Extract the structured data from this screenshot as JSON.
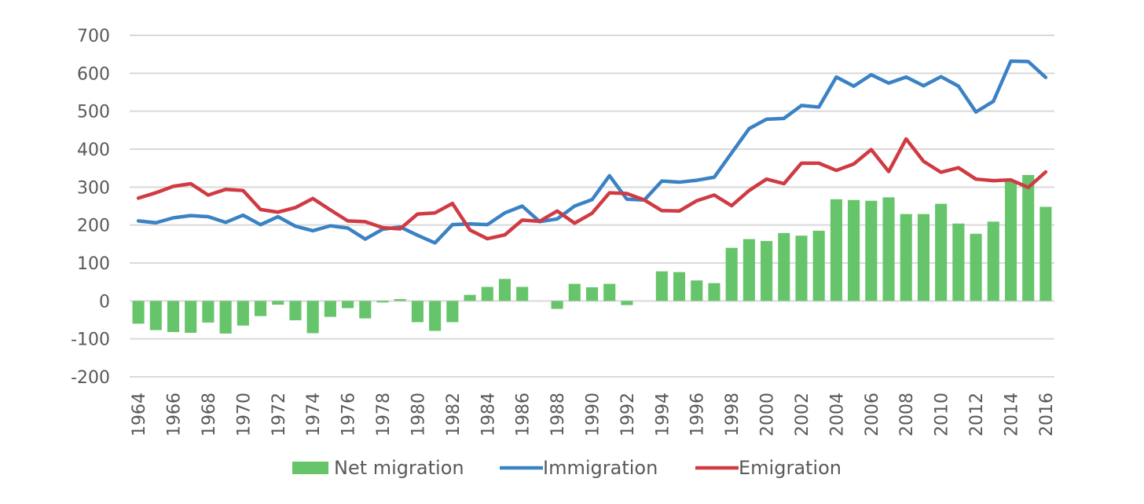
{
  "chart_data": {
    "type": "bar+line",
    "title": "",
    "xlabel": "",
    "ylabel": "",
    "ylim": [
      -200,
      700
    ],
    "yticks": [
      -200,
      -100,
      0,
      100,
      200,
      300,
      400,
      500,
      600,
      700
    ],
    "grid": true,
    "legend_position": "bottom",
    "x": [
      1964,
      1965,
      1966,
      1967,
      1968,
      1969,
      1970,
      1971,
      1972,
      1973,
      1974,
      1975,
      1976,
      1977,
      1978,
      1979,
      1980,
      1981,
      1982,
      1983,
      1984,
      1985,
      1986,
      1987,
      1988,
      1989,
      1990,
      1991,
      1992,
      1993,
      1994,
      1995,
      1996,
      1997,
      1998,
      1999,
      2000,
      2001,
      2002,
      2003,
      2004,
      2005,
      2006,
      2007,
      2008,
      2009,
      2010,
      2011,
      2012,
      2013,
      2014,
      2015,
      2016
    ],
    "series": [
      {
        "name": "Net migration",
        "type": "bar",
        "color": "#66C56A",
        "values": [
          -60,
          -77,
          -82,
          -84,
          -57,
          -86,
          -65,
          -40,
          -10,
          -51,
          -85,
          -42,
          -19,
          -46,
          -4,
          5,
          -56,
          -79,
          -56,
          16,
          37,
          58,
          37,
          0,
          -21,
          45,
          36,
          45,
          -11,
          0,
          78,
          76,
          54,
          47,
          140,
          163,
          158,
          179,
          172,
          185,
          268,
          266,
          264,
          273,
          229,
          229,
          256,
          204,
          177,
          209,
          317,
          332,
          248
        ]
      },
      {
        "name": "Immigration",
        "type": "line",
        "color": "#3A82C4",
        "values": [
          211,
          206,
          219,
          225,
          222,
          207,
          226,
          201,
          222,
          197,
          185,
          198,
          192,
          163,
          189,
          195,
          173,
          153,
          201,
          203,
          201,
          232,
          250,
          209,
          216,
          250,
          267,
          330,
          268,
          266,
          316,
          313,
          318,
          326,
          390,
          454,
          479,
          481,
          515,
          511,
          590,
          566,
          596,
          574,
          590,
          567,
          591,
          566,
          498,
          526,
          632,
          631,
          589
        ]
      },
      {
        "name": "Emigration",
        "type": "line",
        "color": "#D03A43",
        "values": [
          271,
          285,
          302,
          309,
          279,
          294,
          291,
          241,
          234,
          246,
          270,
          240,
          211,
          209,
          193,
          190,
          229,
          232,
          257,
          187,
          164,
          174,
          213,
          210,
          237,
          205,
          231,
          285,
          283,
          266,
          238,
          237,
          264,
          279,
          251,
          291,
          321,
          309,
          363,
          363,
          344,
          361,
          399,
          341,
          427,
          368,
          339,
          351,
          321,
          317,
          319,
          299,
          340
        ]
      }
    ]
  }
}
